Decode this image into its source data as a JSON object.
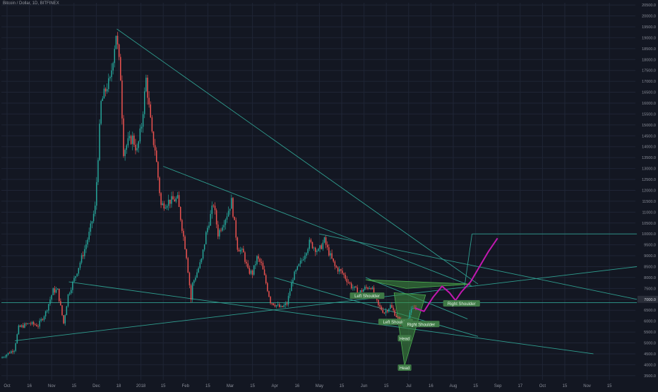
{
  "title": "Bitcoin / Dollar, 1D, BITFINEX",
  "colors": {
    "background": "#131722",
    "grid": "#1f2535",
    "up": "#26a69a",
    "down": "#ef5350",
    "trendline": "#2f9e8f",
    "pattern_fill": "#3f8f3f",
    "projection": "#c218b0",
    "axis_text": "#8a8e99",
    "label_bg": "#3f7a46"
  },
  "chart_data": {
    "type": "candlestick",
    "title": "Bitcoin / Dollar, 1D, BITFINEX",
    "y_axis": {
      "ticks": [
        3500,
        4000,
        4500,
        5000,
        5500,
        6000,
        6500,
        7000,
        7500,
        8000,
        8500,
        9000,
        9500,
        10000,
        10500,
        11000,
        11500,
        12000,
        12500,
        13000,
        13500,
        14000,
        14500,
        15000,
        15500,
        16000,
        16500,
        17000,
        17500,
        18000,
        18500,
        19000,
        19500,
        20000,
        20500
      ],
      "labels": [
        "3500.0",
        "4000.0",
        "4500.0",
        "5000.0",
        "5500.0",
        "6000.0",
        "6500.0",
        "7000.0",
        "7500.0",
        "8000.0",
        "8500.0",
        "9000.0",
        "9500.0",
        "10000.0",
        "10500.0",
        "11000.0",
        "11500.0",
        "12000.0",
        "12500.0",
        "13000.0",
        "13500.0",
        "14000.0",
        "14500.0",
        "15000.0",
        "15500.0",
        "16000.0",
        "16500.0",
        "17000.0",
        "17500.0",
        "18000.0",
        "18500.0",
        "19000.0",
        "19500.0",
        "20000.0",
        "20500.0"
      ],
      "range": [
        3300,
        20600
      ]
    },
    "x_axis": {
      "labels": [
        "Oct",
        "16",
        "Nov",
        "15",
        "Dec",
        "18",
        "2018",
        "15",
        "Feb",
        "15",
        "Mar",
        "15",
        "Apr",
        "16",
        "May",
        "15",
        "Jun",
        "15",
        "Jul",
        "16",
        "Aug",
        "15",
        "Sep",
        "17",
        "Oct",
        "15",
        "Nov",
        "15"
      ],
      "range": [
        "2017-10-01",
        "2018-11-28"
      ]
    },
    "price_path": [
      [
        "2017-10-01",
        4300
      ],
      [
        "2017-10-10",
        4700
      ],
      [
        "2017-10-13",
        5700
      ],
      [
        "2017-10-20",
        5900
      ],
      [
        "2017-10-26",
        5800
      ],
      [
        "2017-10-31",
        6400
      ],
      [
        "2017-11-05",
        7400
      ],
      [
        "2017-11-08",
        7400
      ],
      [
        "2017-11-12",
        5900
      ],
      [
        "2017-11-15",
        7200
      ],
      [
        "2017-11-20",
        8100
      ],
      [
        "2017-11-26",
        9300
      ],
      [
        "2017-11-29",
        10000
      ],
      [
        "2017-12-03",
        11200
      ],
      [
        "2017-12-07",
        16000
      ],
      [
        "2017-12-11",
        16800
      ],
      [
        "2017-12-13",
        17000
      ],
      [
        "2017-12-17",
        19200
      ],
      [
        "2017-12-20",
        17200
      ],
      [
        "2017-12-22",
        13800
      ],
      [
        "2017-12-25",
        14200
      ],
      [
        "2017-12-28",
        14400
      ],
      [
        "2017-12-31",
        13800
      ],
      [
        "2018-01-03",
        15000
      ],
      [
        "2018-01-06",
        17100
      ],
      [
        "2018-01-10",
        14500
      ],
      [
        "2018-01-12",
        13900
      ],
      [
        "2018-01-16",
        11300
      ],
      [
        "2018-01-19",
        11400
      ],
      [
        "2018-01-21",
        11500
      ],
      [
        "2018-01-27",
        11600
      ],
      [
        "2018-02-02",
        9000
      ],
      [
        "2018-02-05",
        7000
      ],
      [
        "2018-02-06",
        7700
      ],
      [
        "2018-02-12",
        8800
      ],
      [
        "2018-02-15",
        10000
      ],
      [
        "2018-02-20",
        11400
      ],
      [
        "2018-02-23",
        10000
      ],
      [
        "2018-03-01",
        10900
      ],
      [
        "2018-03-04",
        11500
      ],
      [
        "2018-03-08",
        9400
      ],
      [
        "2018-03-12",
        9100
      ],
      [
        "2018-03-15",
        8300
      ],
      [
        "2018-03-18",
        8200
      ],
      [
        "2018-03-21",
        8900
      ],
      [
        "2018-03-24",
        8600
      ],
      [
        "2018-03-30",
        6900
      ],
      [
        "2018-04-06",
        6600
      ],
      [
        "2018-04-10",
        6800
      ],
      [
        "2018-04-14",
        8000
      ],
      [
        "2018-04-20",
        8800
      ],
      [
        "2018-04-25",
        9600
      ],
      [
        "2018-05-01",
        9200
      ],
      [
        "2018-05-05",
        9700
      ],
      [
        "2018-05-07",
        9300
      ],
      [
        "2018-05-12",
        8500
      ],
      [
        "2018-05-17",
        8200
      ],
      [
        "2018-05-23",
        7600
      ],
      [
        "2018-05-28",
        7300
      ],
      [
        "2018-06-01",
        7500
      ],
      [
        "2018-06-05",
        7600
      ],
      [
        "2018-06-10",
        6700
      ],
      [
        "2018-06-14",
        6400
      ],
      [
        "2018-06-18",
        6700
      ],
      [
        "2018-06-24",
        6000
      ],
      [
        "2018-06-28",
        5900
      ],
      [
        "2018-07-01",
        6400
      ],
      [
        "2018-07-04",
        6600
      ]
    ],
    "projection": [
      [
        "2018-07-04",
        6600
      ],
      [
        "2018-07-10",
        6450
      ],
      [
        "2018-07-16",
        7100
      ],
      [
        "2018-07-22",
        7600
      ],
      [
        "2018-07-27",
        7300
      ],
      [
        "2018-07-31",
        6950
      ],
      [
        "2018-08-04",
        7350
      ],
      [
        "2018-08-10",
        7800
      ],
      [
        "2018-08-16",
        8500
      ],
      [
        "2018-08-22",
        9200
      ],
      [
        "2018-08-28",
        9800
      ]
    ],
    "trendlines": [
      [
        [
          "2017-12-17",
          19400
        ],
        [
          "2018-08-15",
          7700
        ]
      ],
      [
        [
          "2018-01-17",
          13100
        ],
        [
          "2018-08-11",
          7600
        ]
      ],
      [
        [
          "2017-11-15",
          7800
        ],
        [
          "2018-10-31",
          4500
        ]
      ],
      [
        [
          "2017-10-10",
          5100
        ],
        [
          "2018-11-29",
          8500
        ]
      ],
      [
        [
          "2017-10-01",
          6850
        ],
        [
          "2018-11-29",
          6850
        ]
      ],
      [
        [
          "2018-05-01",
          10000
        ],
        [
          "2018-11-29",
          7000
        ]
      ],
      [
        [
          "2018-04-01",
          8000
        ],
        [
          "2018-08-15",
          5300
        ]
      ],
      [
        [
          "2018-06-01",
          8000
        ],
        [
          "2018-08-08",
          6100
        ]
      ],
      [
        [
          "2018-08-06",
          7600
        ],
        [
          "2018-08-11",
          10000
        ]
      ],
      [
        [
          "2018-08-11",
          10000
        ],
        [
          "2018-11-29",
          10000
        ]
      ]
    ],
    "patterns": [
      {
        "points": [
          [
            "2018-06-01",
            7900
          ],
          [
            "2018-06-28",
            7500
          ],
          [
            "2018-08-10",
            7700
          ]
        ],
        "fill": true
      },
      {
        "points": [
          [
            "2018-06-20",
            7300
          ],
          [
            "2018-06-27",
            3950
          ],
          [
            "2018-07-11",
            7200
          ]
        ],
        "fill": true
      }
    ],
    "annotations": [
      {
        "text": "Left Shoulder",
        "date": "2018-06-02",
        "price": 7150
      },
      {
        "text": "Left Shoulder",
        "date": "2018-06-21",
        "price": 5950
      },
      {
        "text": "Head",
        "date": "2018-06-27",
        "price": 5200
      },
      {
        "text": "Right Shoulder",
        "date": "2018-07-08",
        "price": 5850
      },
      {
        "text": "Right Shoulder",
        "date": "2018-08-04",
        "price": 6800
      },
      {
        "text": "Head",
        "date": "2018-06-27",
        "price": 3850
      }
    ],
    "price_tag": "7000.0"
  }
}
